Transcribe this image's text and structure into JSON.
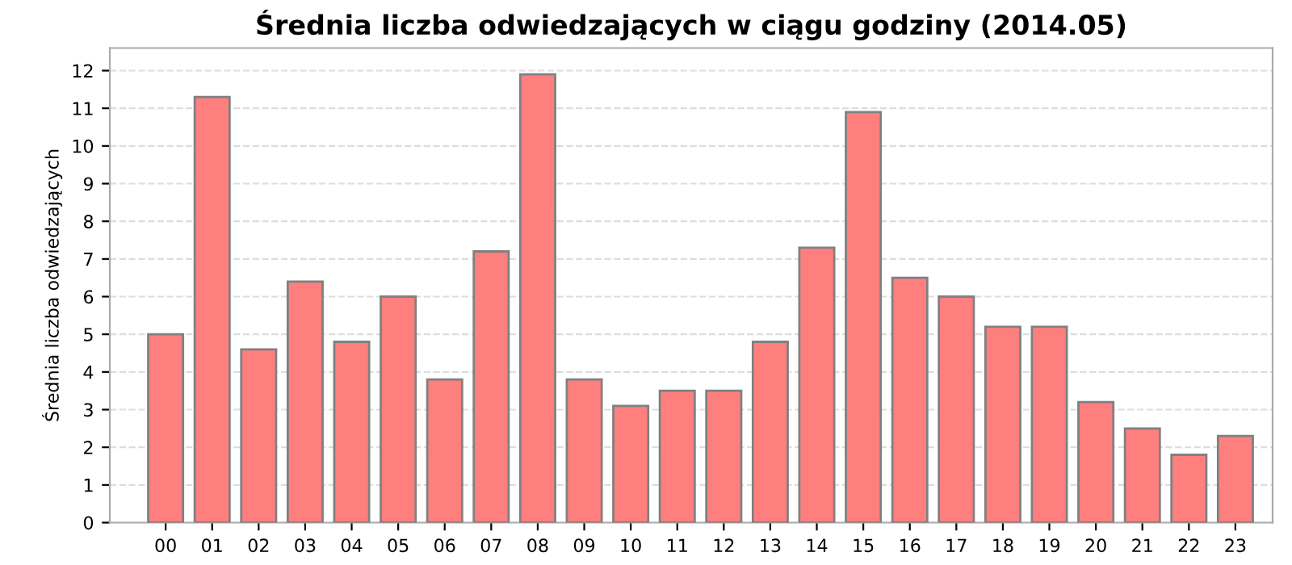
{
  "chart_data": {
    "type": "bar",
    "title": "Średnia liczba odwiedzających w ciągu godziny (2014.05)",
    "ylabel": "Średnia liczba odwiedzających",
    "categories": [
      "00",
      "01",
      "02",
      "03",
      "04",
      "05",
      "06",
      "07",
      "08",
      "09",
      "10",
      "11",
      "12",
      "13",
      "14",
      "15",
      "16",
      "17",
      "18",
      "19",
      "20",
      "21",
      "22",
      "23"
    ],
    "values": [
      5.0,
      11.3,
      4.6,
      6.4,
      4.8,
      6.0,
      3.8,
      7.2,
      11.9,
      3.8,
      3.1,
      3.5,
      3.5,
      4.8,
      7.3,
      10.9,
      6.5,
      6.0,
      5.2,
      5.2,
      3.2,
      2.5,
      1.8,
      2.3
    ],
    "color": "#ff7f7f",
    "ylim": [
      0,
      12.6
    ],
    "yticks": [
      0,
      1,
      2,
      3,
      4,
      5,
      6,
      7,
      8,
      9,
      10,
      11,
      12
    ],
    "grid": "y",
    "legend": false
  }
}
